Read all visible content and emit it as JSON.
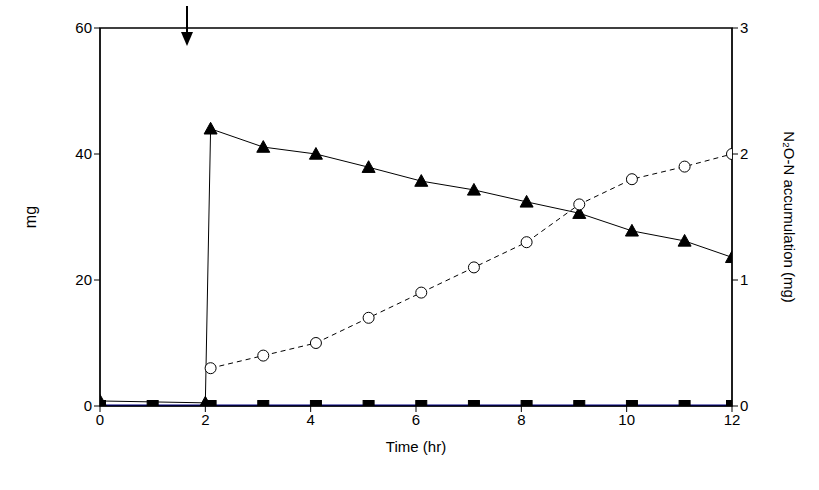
{
  "chart_data": {
    "type": "line",
    "xlabel": "Time (hr)",
    "ylabel": "mg",
    "y2label": "N₂O-N accumulation (mg)",
    "xlim": [
      0,
      12
    ],
    "xticks": [
      0,
      2,
      4,
      6,
      8,
      10,
      12
    ],
    "ylim": [
      0,
      60
    ],
    "yticks": [
      0,
      20,
      40,
      60
    ],
    "y2lim": [
      0,
      3
    ],
    "y2ticks": [
      0,
      1,
      2,
      3
    ],
    "series": [
      {
        "color": "#000000",
        "marker": "triangle",
        "line_style": "solid",
        "x": [
          0,
          2,
          2.1,
          3.1,
          4.1,
          5.1,
          6.1,
          7.1,
          8.1,
          9.1,
          10.1,
          11.1,
          12
        ],
        "values": [
          0.8,
          0.5,
          44,
          41.1,
          40,
          37.9,
          35.7,
          34.3,
          32.4,
          30.6,
          27.8,
          26.2,
          23.6
        ]
      },
      {
        "color": "#000000",
        "marker": "circle",
        "line_style": "dashed",
        "axis": "y2",
        "x": [
          2.1,
          3.1,
          4.1,
          5.1,
          6.1,
          7.1,
          8.1,
          9.1,
          10.1,
          11.1,
          12
        ],
        "values": [
          0.3,
          0.4,
          0.5,
          0.7,
          0.9,
          1.1,
          1.3,
          1.6,
          1.8,
          1.9,
          2.0
        ]
      },
      {
        "color": "#000080",
        "marker": "square",
        "line_style": "solid",
        "x": [
          0,
          1,
          2.1,
          3.1,
          4.1,
          5.1,
          6.1,
          7.1,
          8.1,
          9.1,
          10.1,
          11.1,
          12
        ],
        "values": [
          0,
          0,
          0,
          0,
          0,
          0,
          0,
          0,
          0,
          0,
          0,
          0,
          0
        ]
      }
    ]
  }
}
